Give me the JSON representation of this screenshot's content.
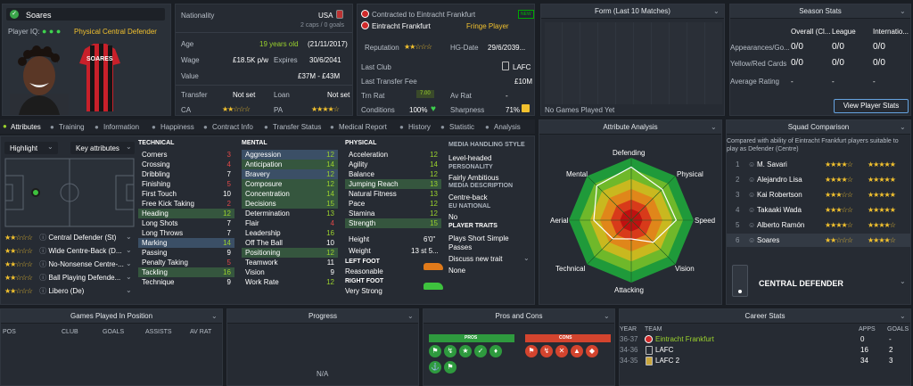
{
  "player": {
    "name": "Soares",
    "iq_label": "Player IQ:",
    "role": "Physical Central Defender",
    "shirt": "SOARES"
  },
  "info": {
    "nationality_label": "Nationality",
    "nationality": "USA",
    "caps": "2 caps / 0 goals",
    "age_label": "Age",
    "age": "19 years old",
    "dob": "(21/11/2017)",
    "wage_label": "Wage",
    "wage": "£18.5K p/w",
    "expires_label": "Expires",
    "expires": "30/6/2041",
    "value_label": "Value",
    "value": "£37M - £43M",
    "transfer_label": "Transfer",
    "transfer": "Not set",
    "loan_label": "Loan",
    "loan": "Not set",
    "ca_label": "CA",
    "pa_label": "PA",
    "ca_stars": "★★☆☆☆",
    "pa_stars": "★★★★☆"
  },
  "club": {
    "contract_label": "Contracted to Eintracht Frankfurt",
    "club": "Eintracht Frankfurt",
    "status": "Fringe Player",
    "badge": "NEW",
    "rep_label": "Reputation",
    "hg_label": "HG-Date",
    "hg": "29/6/2039...",
    "last_club_label": "Last Club",
    "last_club": "LAFC",
    "fee_label": "Last Transfer Fee",
    "fee": "£10M",
    "trn_label": "Trn Rat",
    "trn": "7.00",
    "av_label": "Av Rat",
    "av": "-",
    "cond_label": "Conditions",
    "cond": "100%",
    "sharp_label": "Sharpness",
    "sharp": "71%"
  },
  "form": {
    "title": "Form (Last 10 Matches)",
    "empty": "No Games Played Yet"
  },
  "season": {
    "title": "Season Stats",
    "cols": [
      "Overall (Cl...",
      "League",
      "Internatio..."
    ],
    "rows": [
      {
        "label": "Appearances/Go...",
        "v": [
          "0/0",
          "0/0",
          "0/0"
        ]
      },
      {
        "label": "Yellow/Red Cards",
        "v": [
          "0/0",
          "0/0",
          "0/0"
        ]
      },
      {
        "label": "Average Rating",
        "v": [
          "-",
          "-",
          "-"
        ]
      }
    ],
    "button": "View Player Stats"
  },
  "tabs": [
    "Attributes",
    "Training",
    "Information",
    "Happiness",
    "Contract Info",
    "Transfer Status",
    "Medical Report",
    "History",
    "Statistic",
    "Analysis"
  ],
  "toolbar": {
    "highlight": "Highlight",
    "key": "Key attributes"
  },
  "positions": [
    {
      "stars": "★★☆☆☆",
      "label": "Central Defender (St)"
    },
    {
      "stars": "★★☆☆☆",
      "label": "Wide Centre-Back (D..."
    },
    {
      "stars": "★★☆☆☆",
      "label": "No-Nonsense Centre-..."
    },
    {
      "stars": "★★☆☆☆",
      "label": "Ball Playing Defende..."
    },
    {
      "stars": "★★☆☆☆",
      "label": "Libero (De)"
    }
  ],
  "technical": {
    "title": "TECHNICAL",
    "items": [
      {
        "n": "Corners",
        "v": "3",
        "c": "red"
      },
      {
        "n": "Crossing",
        "v": "4",
        "c": "red"
      },
      {
        "n": "Dribbling",
        "v": "7",
        "c": "wht"
      },
      {
        "n": "Finishing",
        "v": "5",
        "c": "red"
      },
      {
        "n": "First Touch",
        "v": "10",
        "c": "wht"
      },
      {
        "n": "Free Kick Taking",
        "v": "2",
        "c": "red"
      },
      {
        "n": "Heading",
        "v": "12",
        "c": "grn",
        "h": "hl"
      },
      {
        "n": "Long Shots",
        "v": "7",
        "c": "wht"
      },
      {
        "n": "Long Throws",
        "v": "7",
        "c": "wht"
      },
      {
        "n": "Marking",
        "v": "14",
        "c": "grn",
        "h": "hb"
      },
      {
        "n": "Passing",
        "v": "9",
        "c": "wht"
      },
      {
        "n": "Penalty Taking",
        "v": "5",
        "c": "red"
      },
      {
        "n": "Tackling",
        "v": "16",
        "c": "grn",
        "h": "hl"
      },
      {
        "n": "Technique",
        "v": "9",
        "c": "wht"
      }
    ]
  },
  "mental": {
    "title": "MENTAL",
    "items": [
      {
        "n": "Aggression",
        "v": "12",
        "c": "grn",
        "h": "hb"
      },
      {
        "n": "Anticipation",
        "v": "14",
        "c": "grn",
        "h": "hl"
      },
      {
        "n": "Bravery",
        "v": "12",
        "c": "grn",
        "h": "hb"
      },
      {
        "n": "Composure",
        "v": "12",
        "c": "grn",
        "h": "hl"
      },
      {
        "n": "Concentration",
        "v": "14",
        "c": "grn",
        "h": "hl"
      },
      {
        "n": "Decisions",
        "v": "15",
        "c": "grn",
        "h": "hl"
      },
      {
        "n": "Determination",
        "v": "13",
        "c": "grn"
      },
      {
        "n": "Flair",
        "v": "4",
        "c": "red"
      },
      {
        "n": "Leadership",
        "v": "16",
        "c": "grn"
      },
      {
        "n": "Off The Ball",
        "v": "10",
        "c": "wht"
      },
      {
        "n": "Positioning",
        "v": "12",
        "c": "grn",
        "h": "hl"
      },
      {
        "n": "Teamwork",
        "v": "11",
        "c": "wht"
      },
      {
        "n": "Vision",
        "v": "9",
        "c": "wht"
      },
      {
        "n": "Work Rate",
        "v": "12",
        "c": "grn"
      }
    ]
  },
  "physical": {
    "title": "PHYSICAL",
    "items": [
      {
        "n": "Acceleration",
        "v": "12",
        "c": "grn"
      },
      {
        "n": "Agility",
        "v": "14",
        "c": "grn"
      },
      {
        "n": "Balance",
        "v": "12",
        "c": "grn"
      },
      {
        "n": "Jumping Reach",
        "v": "13",
        "c": "grn",
        "h": "hl"
      },
      {
        "n": "Natural Fitness",
        "v": "13",
        "c": "grn"
      },
      {
        "n": "Pace",
        "v": "12",
        "c": "grn"
      },
      {
        "n": "Stamina",
        "v": "12",
        "c": "grn"
      },
      {
        "n": "Strength",
        "v": "15",
        "c": "grn",
        "h": "hl"
      }
    ],
    "height_label": "Height",
    "height": "6'0\"",
    "weight_label": "Weight",
    "weight": "13 st 5...",
    "left_label": "LEFT FOOT",
    "left": "Reasonable",
    "right_label": "RIGHT FOOT",
    "right": "Very Strong"
  },
  "media": {
    "style_label": "MEDIA HANDLING STYLE",
    "style": "Level-headed",
    "pers_label": "PERSONALITY",
    "pers": "Fairly Ambitious",
    "desc_label": "MEDIA DESCRIPTION",
    "desc": "Centre-back",
    "eu_label": "EU NATIONAL",
    "eu": "No",
    "traits_label": "PLAYER TRAITS",
    "traits": [
      "Plays Short Simple",
      "Passes"
    ],
    "discuss": "Discuss new trait",
    "none": "None"
  },
  "analysis": {
    "title": "Attribute Analysis",
    "axes": [
      "Defending",
      "Physical",
      "Speed",
      "Vision",
      "Attacking",
      "Technical",
      "Aerial",
      "Mental"
    ],
    "values": [
      0.85,
      0.7,
      0.72,
      0.5,
      0.3,
      0.42,
      0.6,
      0.78
    ]
  },
  "squad": {
    "title": "Squad Comparison",
    "desc": "Compared with ability of Eintracht Frankfurt players suitable to play as Defender (Centre)",
    "rows": [
      {
        "n": "1",
        "name": "M. Savari",
        "ca": "★★★★☆",
        "pa": "★★★★★"
      },
      {
        "n": "2",
        "name": "Alejandro Lisa",
        "ca": "★★★★☆",
        "pa": "★★★★★"
      },
      {
        "n": "3",
        "name": "Kai Robertson",
        "ca": "★★★☆☆",
        "pa": "★★★★★"
      },
      {
        "n": "4",
        "name": "Takaaki Wada",
        "ca": "★★★☆☆",
        "pa": "★★★★★"
      },
      {
        "n": "5",
        "name": "Alberto Ramón",
        "ca": "★★★★☆",
        "pa": "★★★★☆"
      },
      {
        "n": "6",
        "name": "Soares",
        "ca": "★★☆☆☆",
        "pa": "★★★★☆"
      }
    ],
    "role": "CENTRAL DEFENDER"
  },
  "games": {
    "title": "Games Played In Position",
    "cols": [
      "POS",
      "CLUB",
      "GOALS",
      "ASSISTS",
      "AV RAT"
    ]
  },
  "progress": {
    "title": "Progress",
    "empty": "N/A"
  },
  "pros": {
    "title": "Pros and Cons",
    "pros_label": "PROS",
    "cons_label": "CONS"
  },
  "career": {
    "title": "Career Stats",
    "cols": [
      "YEAR",
      "TEAM",
      "APPS",
      "GOALS"
    ],
    "rows": [
      {
        "year": "36-37",
        "team": "Eintracht Frankfurt",
        "apps": "0",
        "goals": "-"
      },
      {
        "year": "34-36",
        "team": "LAFC",
        "apps": "16",
        "goals": "2"
      },
      {
        "year": "34-35",
        "team": "LAFC 2",
        "apps": "34",
        "goals": "3"
      }
    ]
  },
  "colors": {
    "accent": "#9bd22d",
    "star": "#f2c12e",
    "low": "#e04848"
  }
}
